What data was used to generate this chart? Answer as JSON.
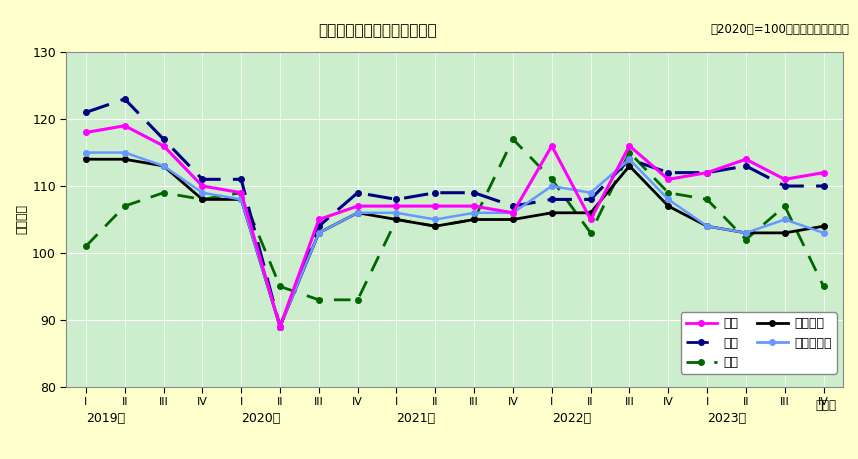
{
  "title": "製造工業指数の四半期別推移",
  "subtitle_right": "（2020年=100　季節調整済指数）",
  "ylabel": "（指数）",
  "xlabel_right": "（期）",
  "ylim": [
    80,
    130
  ],
  "yticks": [
    80,
    90,
    100,
    110,
    120,
    130
  ],
  "background_color": "#cceecc",
  "outer_background": "#ffffcc",
  "x_labels": [
    "I",
    "II",
    "III",
    "IV",
    "I",
    "II",
    "III",
    "IV",
    "I",
    "II",
    "III",
    "IV",
    "I",
    "II",
    "III",
    "IV",
    "I",
    "II",
    "III",
    "IV"
  ],
  "year_labels": [
    "2019年",
    "2020年",
    "2021年",
    "2022年",
    "2023年"
  ],
  "year_positions": [
    0,
    4,
    8,
    12,
    16
  ],
  "series": {
    "生産": {
      "color": "#ff00ff",
      "linewidth": 2.2,
      "markersize": 4,
      "values": [
        118,
        119,
        116,
        110,
        109,
        89,
        105,
        107,
        107,
        107,
        107,
        106,
        116,
        105,
        116,
        111,
        112,
        114,
        111,
        112
      ]
    },
    "出荷": {
      "color": "#000080",
      "linewidth": 2.2,
      "markersize": 4,
      "values": [
        121,
        123,
        117,
        111,
        111,
        89,
        104,
        109,
        108,
        109,
        109,
        107,
        108,
        108,
        114,
        112,
        112,
        113,
        110,
        110
      ]
    },
    "在庫": {
      "color": "#006600",
      "linewidth": 2.0,
      "markersize": 4,
      "values": [
        101,
        107,
        109,
        108,
        109,
        95,
        93,
        93,
        105,
        104,
        105,
        117,
        111,
        103,
        115,
        109,
        108,
        102,
        107,
        95
      ]
    },
    "全国生産": {
      "color": "#000000",
      "linewidth": 2.0,
      "markersize": 4,
      "values": [
        114,
        114,
        113,
        108,
        108,
        89,
        103,
        106,
        105,
        104,
        105,
        105,
        106,
        106,
        113,
        107,
        104,
        103,
        103,
        104
      ]
    },
    "関東局生産": {
      "color": "#6699ff",
      "linewidth": 1.8,
      "markersize": 4,
      "values": [
        115,
        115,
        113,
        109,
        108,
        89,
        103,
        106,
        106,
        105,
        106,
        106,
        110,
        109,
        114,
        108,
        104,
        103,
        105,
        103
      ]
    }
  }
}
